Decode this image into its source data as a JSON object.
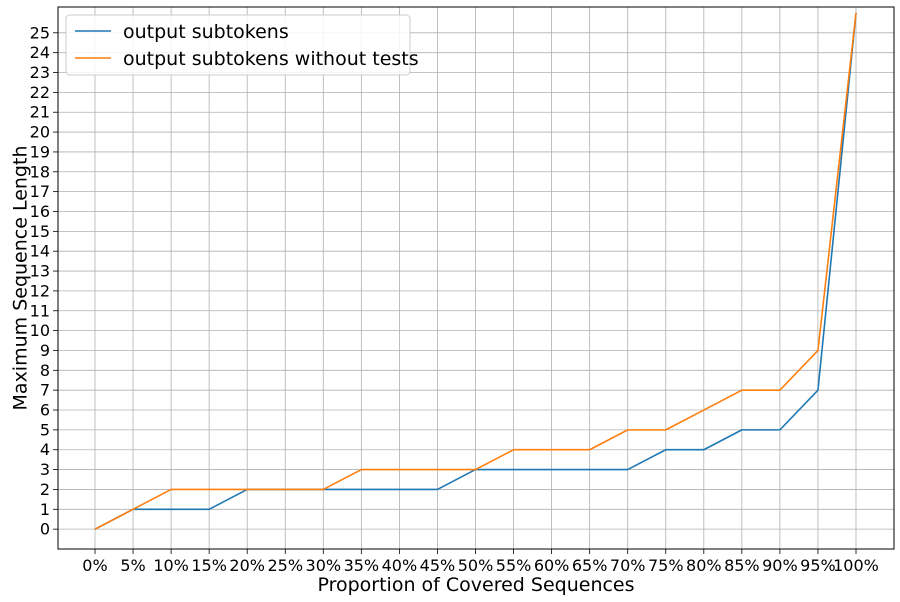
{
  "chart_data": {
    "type": "line",
    "title": "",
    "xlabel": "Proportion of Covered Sequences",
    "ylabel": "Maximum Sequence Length",
    "x": [
      "0%",
      "5%",
      "10%",
      "15%",
      "20%",
      "25%",
      "30%",
      "35%",
      "40%",
      "45%",
      "50%",
      "55%",
      "60%",
      "65%",
      "70%",
      "75%",
      "80%",
      "85%",
      "90%",
      "95%",
      "100%"
    ],
    "y_ticks": [
      0,
      1,
      2,
      3,
      4,
      5,
      6,
      7,
      8,
      9,
      10,
      11,
      12,
      13,
      14,
      15,
      16,
      17,
      18,
      19,
      20,
      21,
      22,
      23,
      24,
      25
    ],
    "ylim": [
      -1,
      26.3
    ],
    "grid": true,
    "legend_position": "top-left",
    "series": [
      {
        "name": "output subtokens",
        "color": "#1f77b4",
        "values": [
          0,
          1,
          1,
          1,
          2,
          2,
          2,
          2,
          2,
          2,
          3,
          3,
          3,
          3,
          3,
          4,
          4,
          5,
          5,
          7,
          26
        ]
      },
      {
        "name": "output subtokens without tests",
        "color": "#ff7f0e",
        "values": [
          0,
          1,
          2,
          2,
          2,
          2,
          2,
          3,
          3,
          3,
          3,
          4,
          4,
          4,
          5,
          5,
          6,
          7,
          7,
          9,
          26
        ]
      }
    ]
  }
}
